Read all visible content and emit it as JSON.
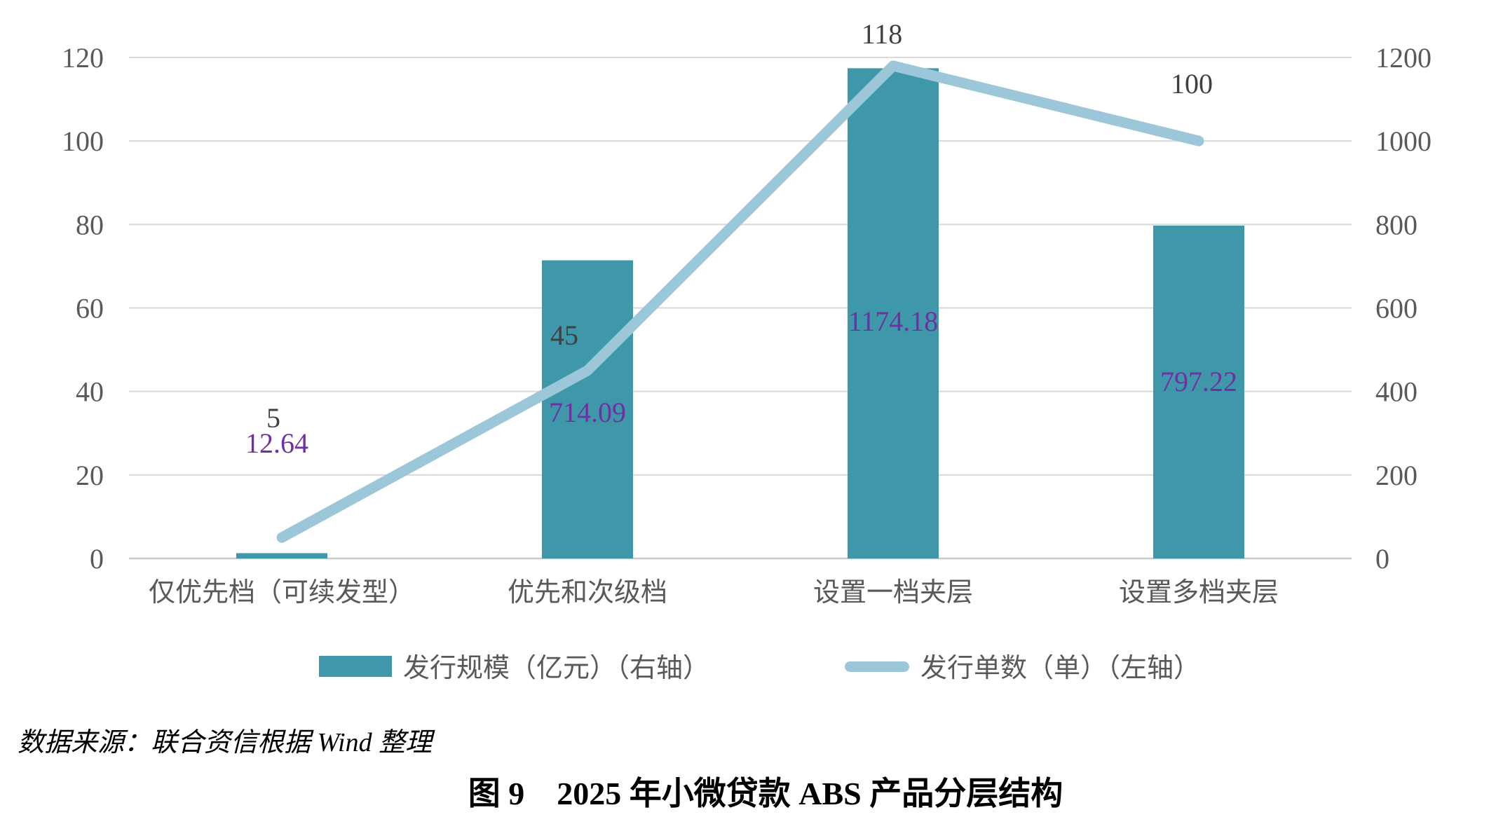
{
  "page": {
    "source_note": "数据来源：联合资信根据 Wind 整理",
    "figure_caption": "图 9　2025 年小微贷款 ABS 产品分层结构"
  },
  "legend": {
    "bar_series_label": "发行规模（亿元）（右轴）",
    "line_series_label": "发行单数（单）（左轴）"
  },
  "colors": {
    "bar": "#3F97AA",
    "line": "#9BC7D9",
    "bar_label": "#7030A0",
    "line_label": "#404040",
    "axis_text": "#595959",
    "gridline": "#D9D9D9",
    "baseline": "#C8C8C8"
  },
  "chart_data": {
    "type": "bar",
    "subtype": "combo-bar-line-dual-axis",
    "categories": [
      "仅优先档（可续发型）",
      "优先和次级档",
      "设置一档夹层",
      "设置多档夹层"
    ],
    "series": [
      {
        "name": "发行规模（亿元）（右轴）",
        "type": "bar",
        "axis": "right",
        "color": "#3F97AA",
        "values": [
          12.64,
          714.09,
          1174.18,
          797.22
        ],
        "labels": [
          "12.64",
          "714.09",
          "1174.18",
          "797.22"
        ],
        "label_color": "#7030A0"
      },
      {
        "name": "发行单数（单）（左轴）",
        "type": "line",
        "axis": "left",
        "color": "#9BC7D9",
        "values": [
          5,
          45,
          118,
          100
        ],
        "labels": [
          "5",
          "45",
          "118",
          "100"
        ],
        "label_color": "#404040"
      }
    ],
    "left_axis": {
      "min": 0,
      "max": 120,
      "step": 20,
      "ticks": [
        "0",
        "20",
        "40",
        "60",
        "80",
        "100",
        "120"
      ]
    },
    "right_axis": {
      "min": 0,
      "max": 1200,
      "step": 200,
      "ticks": [
        "0",
        "200",
        "400",
        "600",
        "800",
        "1000",
        "1200"
      ]
    },
    "grid": true,
    "legend_position": "bottom",
    "title": "图 9　2025 年小微贷款 ABS 产品分层结构"
  }
}
